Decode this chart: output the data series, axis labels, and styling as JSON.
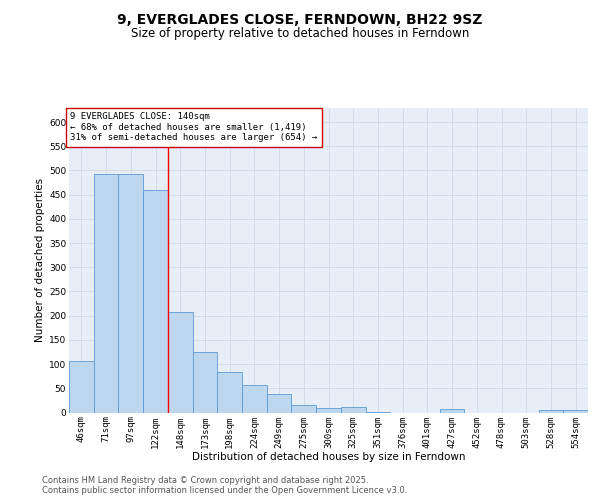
{
  "title": "9, EVERGLADES CLOSE, FERNDOWN, BH22 9SZ",
  "subtitle": "Size of property relative to detached houses in Ferndown",
  "xlabel": "Distribution of detached houses by size in Ferndown",
  "ylabel": "Number of detached properties",
  "bar_labels": [
    "46sqm",
    "71sqm",
    "97sqm",
    "122sqm",
    "148sqm",
    "173sqm",
    "198sqm",
    "224sqm",
    "249sqm",
    "275sqm",
    "300sqm",
    "325sqm",
    "351sqm",
    "376sqm",
    "401sqm",
    "427sqm",
    "452sqm",
    "478sqm",
    "503sqm",
    "528sqm",
    "554sqm"
  ],
  "bar_values": [
    107,
    492,
    492,
    460,
    207,
    124,
    84,
    57,
    38,
    15,
    9,
    12,
    1,
    0,
    0,
    7,
    0,
    0,
    0,
    5,
    5
  ],
  "bar_color": "#bdd7ee",
  "bar_edge_color": "#5b9bd5",
  "vline_x": 4,
  "vline_color": "#ff0000",
  "annotation_text": "9 EVERGLADES CLOSE: 140sqm\n← 68% of detached houses are smaller (1,419)\n31% of semi-detached houses are larger (654) →",
  "annotation_box_color": "#ffffff",
  "annotation_box_edge": "#cc0000",
  "ylim": [
    0,
    630
  ],
  "yticks": [
    0,
    50,
    100,
    150,
    200,
    250,
    300,
    350,
    400,
    450,
    500,
    550,
    600
  ],
  "grid_color": "#d0d8e8",
  "bg_color": "#e8eef8",
  "footer_line1": "Contains HM Land Registry data © Crown copyright and database right 2025.",
  "footer_line2": "Contains public sector information licensed under the Open Government Licence v3.0.",
  "title_fontsize": 10,
  "subtitle_fontsize": 8.5,
  "axis_label_fontsize": 7.5,
  "tick_fontsize": 6.5,
  "annotation_fontsize": 6.5,
  "footer_fontsize": 6
}
